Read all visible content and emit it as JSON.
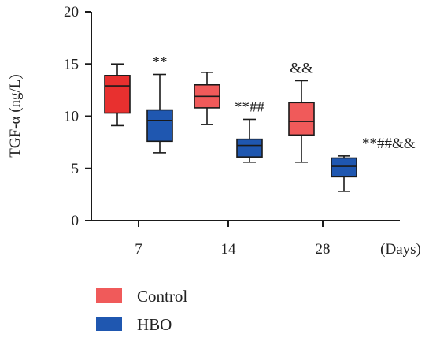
{
  "chart_data": {
    "type": "box",
    "ylabel": "TGF-α (ng/L)",
    "ylim": [
      0,
      20
    ],
    "yticks": [
      0,
      5,
      10,
      15,
      20
    ],
    "categories": [
      "7",
      "14",
      "28"
    ],
    "x_unit": "(Days)",
    "series": [
      {
        "name": "Control",
        "color": "#f05a5a",
        "color_dark": "#e8302f",
        "boxes": [
          {
            "min": 9.1,
            "q1": 10.3,
            "median": 12.9,
            "q3": 13.9,
            "max": 15.0
          },
          {
            "min": 9.2,
            "q1": 10.8,
            "median": 11.9,
            "q3": 13.0,
            "max": 14.2
          },
          {
            "min": 5.6,
            "q1": 8.2,
            "median": 9.5,
            "q3": 11.3,
            "max": 13.4
          }
        ],
        "annotations": [
          "",
          "",
          "&&"
        ]
      },
      {
        "name": "HBO",
        "color": "#1f57b0",
        "boxes": [
          {
            "min": 6.5,
            "q1": 7.6,
            "median": 9.6,
            "q3": 10.6,
            "max": 14.0
          },
          {
            "min": 5.6,
            "q1": 6.1,
            "median": 7.2,
            "q3": 7.8,
            "max": 9.7
          },
          {
            "min": 2.8,
            "q1": 4.2,
            "median": 5.2,
            "q3": 6.0,
            "max": 6.2
          }
        ],
        "annotations": [
          "**",
          "**##",
          "**##&&"
        ]
      }
    ],
    "legend": "bottom-left",
    "grid": false
  }
}
